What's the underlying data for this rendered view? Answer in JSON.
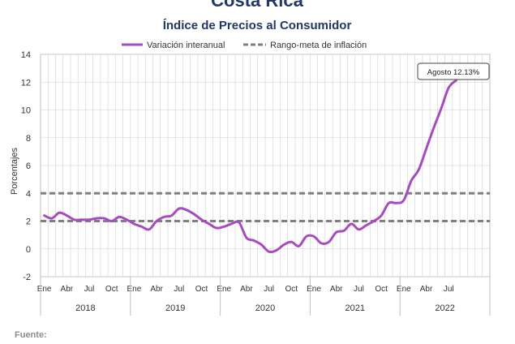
{
  "header": {
    "country": "Costa Rica",
    "title": "Índice de Precios al Consumidor"
  },
  "footer": {
    "source_label": "Fuente:"
  },
  "colors": {
    "series": "#A64CC0",
    "target": "#7F7F7F",
    "title": "#1F3864",
    "grid": "#D0D0D0"
  },
  "chart_data": {
    "type": "line",
    "ylabel": "Porcentajes",
    "ylim": [
      -2,
      14
    ],
    "yticks": [
      -2,
      0,
      2,
      4,
      6,
      8,
      10,
      12,
      14
    ],
    "grid": true,
    "legend_position": "top",
    "month_labels": [
      "Ene",
      "Abr",
      "Jul",
      "Oct"
    ],
    "years": [
      "2018",
      "2019",
      "2020",
      "2021",
      "2022"
    ],
    "x_start": "2018-01",
    "series": [
      {
        "name": "Variación interanual",
        "style": "solid",
        "values": [
          2.4,
          2.2,
          2.6,
          2.4,
          2.1,
          2.1,
          2.1,
          2.2,
          2.2,
          2.0,
          2.3,
          2.1,
          1.8,
          1.6,
          1.4,
          2.0,
          2.3,
          2.4,
          2.9,
          2.8,
          2.5,
          2.1,
          1.8,
          1.5,
          1.6,
          1.8,
          1.9,
          0.8,
          0.6,
          0.3,
          -0.2,
          -0.1,
          0.3,
          0.5,
          0.2,
          0.9,
          0.9,
          0.4,
          0.5,
          1.2,
          1.3,
          1.8,
          1.4,
          1.7,
          2.0,
          2.4,
          3.3,
          3.3,
          3.5,
          4.9,
          5.7,
          7.2,
          8.7,
          10.1,
          11.6,
          12.13
        ]
      },
      {
        "name": "Rango-meta de inflación",
        "style": "dashed",
        "level": 4,
        "values": [
          4,
          4
        ]
      },
      {
        "name": "Rango-meta de inflación",
        "style": "dashed",
        "level": 2,
        "values": [
          2,
          2
        ],
        "legend": false
      }
    ],
    "annotation": {
      "text": "Agosto 12.13%",
      "value": 12.13,
      "period": "2022-08"
    }
  }
}
